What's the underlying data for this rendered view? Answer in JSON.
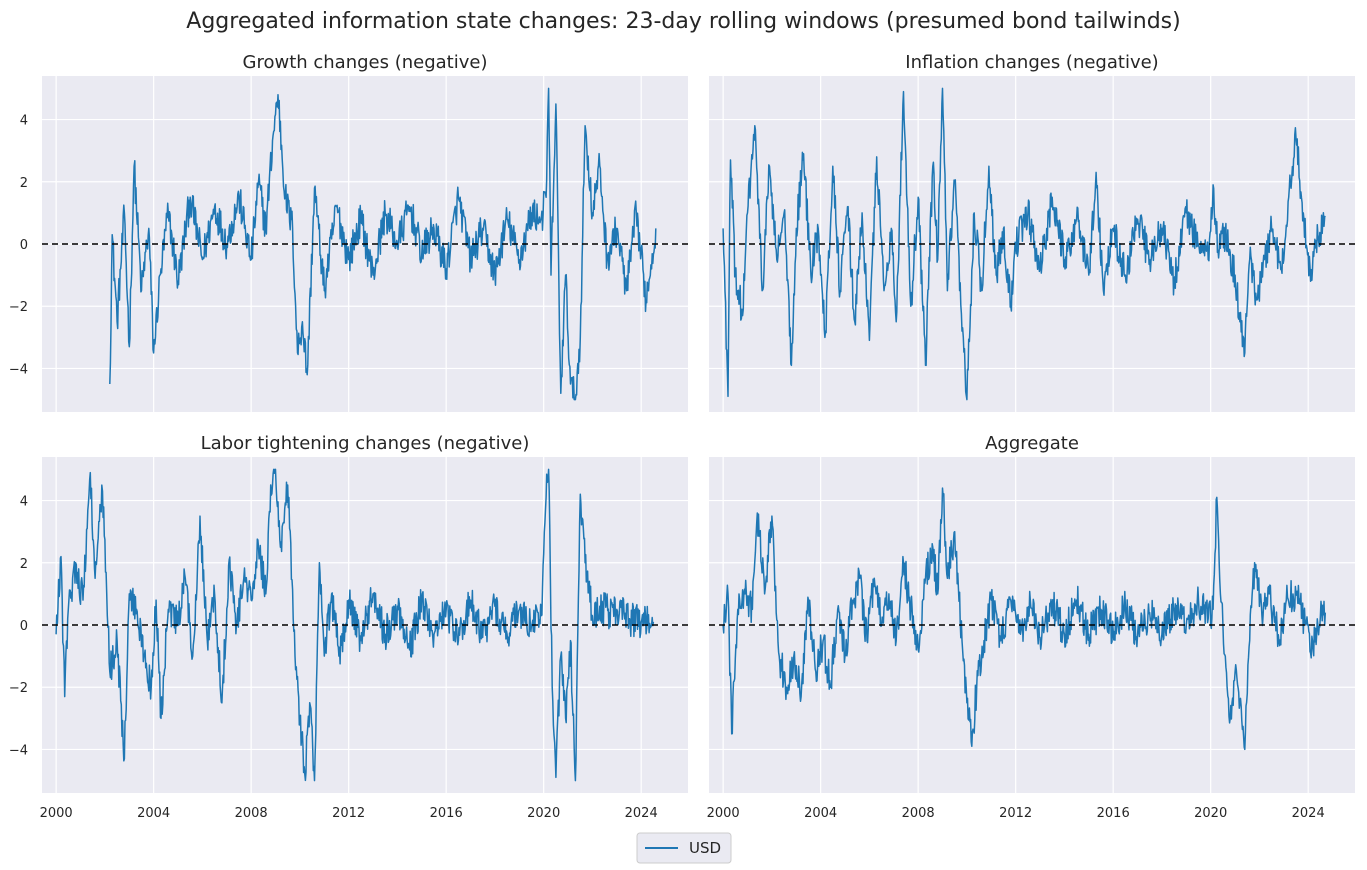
{
  "figure": {
    "title": "Aggregated information state changes: 23-day rolling windows (presumed bond tailwinds)"
  },
  "legend": {
    "entries": [
      {
        "label": "USD",
        "color": "#1f77b4"
      }
    ],
    "placement": "bottom-center"
  },
  "colors": {
    "series": "#1f77b4",
    "panel_bg": "#eaeaf2",
    "grid": "#ffffff",
    "zero_line": "#000000"
  },
  "chart_data": [
    {
      "type": "line",
      "title": "Growth changes (negative)",
      "xlim": [
        1999.42,
        2025.92
      ],
      "ylim": [
        -5.4,
        5.4
      ],
      "x_ticks": [
        2000,
        2004,
        2008,
        2012,
        2016,
        2020,
        2024
      ],
      "x_tick_labels": [
        "2000",
        "2004",
        "2008",
        "2012",
        "2016",
        "2020",
        "2024"
      ],
      "y_ticks": [
        -4,
        -2,
        0,
        2,
        4
      ],
      "y_tick_labels": [
        "−4",
        "−2",
        "0",
        "2",
        "4"
      ],
      "series": [
        {
          "name": "USD",
          "x": [
            2002.2,
            2002.3,
            2002.5,
            2002.8,
            2003.0,
            2003.2,
            2003.5,
            2003.8,
            2004.0,
            2004.3,
            2004.6,
            2005.0,
            2005.5,
            2006.0,
            2006.5,
            2007.0,
            2007.5,
            2008.0,
            2008.3,
            2008.6,
            2008.9,
            2009.1,
            2009.4,
            2009.7,
            2009.9,
            2010.1,
            2010.3,
            2010.6,
            2011.0,
            2011.5,
            2012.0,
            2012.5,
            2013.0,
            2013.5,
            2014.0,
            2014.5,
            2015.0,
            2015.5,
            2016.0,
            2016.5,
            2017.0,
            2017.5,
            2018.0,
            2018.5,
            2019.0,
            2019.5,
            2019.9,
            2020.1,
            2020.2,
            2020.3,
            2020.5,
            2020.7,
            2020.9,
            2021.1,
            2021.3,
            2021.5,
            2021.7,
            2022.0,
            2022.3,
            2022.6,
            2023.0,
            2023.4,
            2023.8,
            2024.2,
            2024.6
          ],
          "y": [
            -4.5,
            0.3,
            -2.5,
            1.0,
            -3.3,
            2.5,
            -1.5,
            0.5,
            -3.5,
            -0.8,
            1.0,
            -1.2,
            1.5,
            -0.5,
            1.2,
            0.0,
            1.5,
            -0.5,
            2.0,
            0.5,
            3.5,
            4.8,
            1.5,
            0.5,
            -3.5,
            -2.5,
            -4.2,
            1.8,
            -1.5,
            1.2,
            -0.5,
            0.8,
            -1.0,
            1.0,
            0.0,
            1.2,
            -0.3,
            0.5,
            -0.8,
            1.5,
            -0.5,
            0.5,
            -1.0,
            0.8,
            -0.5,
            1.0,
            0.8,
            1.5,
            5.0,
            -1.0,
            4.5,
            -4.8,
            -1.0,
            -4.5,
            -5.0,
            -3.0,
            3.8,
            1.0,
            2.5,
            -0.5,
            0.5,
            -1.5,
            1.0,
            -1.8,
            0.5
          ]
        }
      ]
    },
    {
      "type": "line",
      "title": "Inflation changes (negative)",
      "xlim": [
        1999.42,
        2025.92
      ],
      "ylim": [
        -5.4,
        5.4
      ],
      "x_ticks": [
        2000,
        2004,
        2008,
        2012,
        2016,
        2020,
        2024
      ],
      "x_tick_labels": [
        "2000",
        "2004",
        "2008",
        "2012",
        "2016",
        "2020",
        "2024"
      ],
      "y_ticks": [
        -4,
        -2,
        0,
        2,
        4
      ],
      "y_tick_labels": [
        "−4",
        "−2",
        "0",
        "2",
        "4"
      ],
      "series": [
        {
          "name": "USD",
          "x": [
            2000.0,
            2000.2,
            2000.3,
            2000.5,
            2000.8,
            2001.0,
            2001.3,
            2001.6,
            2001.9,
            2002.2,
            2002.5,
            2002.8,
            2003.0,
            2003.3,
            2003.6,
            2003.9,
            2004.2,
            2004.5,
            2004.8,
            2005.1,
            2005.4,
            2005.7,
            2006.0,
            2006.3,
            2006.6,
            2006.9,
            2007.1,
            2007.4,
            2007.7,
            2008.0,
            2008.3,
            2008.6,
            2008.8,
            2009.0,
            2009.2,
            2009.5,
            2009.8,
            2010.0,
            2010.3,
            2010.6,
            2010.9,
            2011.2,
            2011.5,
            2011.8,
            2012.0,
            2012.5,
            2013.0,
            2013.5,
            2014.0,
            2014.5,
            2015.0,
            2015.3,
            2015.6,
            2016.0,
            2016.5,
            2017.0,
            2017.5,
            2018.0,
            2018.5,
            2019.0,
            2019.5,
            2019.9,
            2020.1,
            2020.3,
            2020.6,
            2021.0,
            2021.2,
            2021.4,
            2021.6,
            2021.9,
            2022.2,
            2022.5,
            2022.9,
            2023.2,
            2023.5,
            2023.8,
            2024.1,
            2024.4,
            2024.7
          ],
          "y": [
            0.5,
            -4.9,
            2.7,
            -1.0,
            -2.3,
            1.0,
            3.8,
            -1.5,
            2.5,
            -0.5,
            1.0,
            -3.9,
            0.5,
            2.9,
            -1.0,
            0.5,
            -2.8,
            2.5,
            -1.5,
            1.2,
            -2.5,
            1.0,
            -3.1,
            2.8,
            -1.5,
            0.5,
            -2.5,
            4.9,
            -2.0,
            1.5,
            -3.9,
            2.5,
            -0.5,
            5.0,
            -1.5,
            2.0,
            -2.8,
            -5.0,
            1.0,
            -1.5,
            2.5,
            -1.0,
            0.5,
            -2.0,
            0.0,
            1.0,
            -0.8,
            1.5,
            -0.5,
            0.8,
            -1.0,
            2.3,
            -1.5,
            0.5,
            -1.0,
            0.8,
            -0.5,
            0.5,
            -1.2,
            1.0,
            0.0,
            -0.5,
            1.9,
            -0.2,
            0.3,
            -1.0,
            -2.5,
            -3.5,
            -0.5,
            -1.8,
            -0.5,
            0.5,
            -0.8,
            1.5,
            3.4,
            1.0,
            -1.2,
            0.3,
            0.9
          ]
        }
      ]
    },
    {
      "type": "line",
      "title": "Labor tightening changes (negative)",
      "xlim": [
        1999.42,
        2025.92
      ],
      "ylim": [
        -5.4,
        5.4
      ],
      "x_ticks": [
        2000,
        2004,
        2008,
        2012,
        2016,
        2020,
        2024
      ],
      "x_tick_labels": [
        "2000",
        "2004",
        "2008",
        "2012",
        "2016",
        "2020",
        "2024"
      ],
      "y_ticks": [
        -4,
        -2,
        0,
        2,
        4
      ],
      "y_tick_labels": [
        "−4",
        "−2",
        "0",
        "2",
        "4"
      ],
      "series": [
        {
          "name": "USD",
          "x": [
            2000.0,
            2000.2,
            2000.35,
            2000.5,
            2000.8,
            2001.1,
            2001.4,
            2001.6,
            2001.9,
            2002.2,
            2002.5,
            2002.8,
            2003.0,
            2003.3,
            2003.6,
            2003.9,
            2004.1,
            2004.3,
            2004.6,
            2005.0,
            2005.3,
            2005.6,
            2005.9,
            2006.2,
            2006.5,
            2006.8,
            2007.1,
            2007.4,
            2007.7,
            2008.0,
            2008.3,
            2008.6,
            2008.8,
            2009.0,
            2009.2,
            2009.5,
            2009.8,
            2010.0,
            2010.2,
            2010.4,
            2010.6,
            2010.8,
            2011.0,
            2011.3,
            2011.6,
            2012.0,
            2012.5,
            2013.0,
            2013.5,
            2014.0,
            2014.5,
            2015.0,
            2015.5,
            2016.0,
            2016.5,
            2017.0,
            2017.5,
            2018.0,
            2018.5,
            2019.0,
            2019.5,
            2019.9,
            2020.1,
            2020.2,
            2020.35,
            2020.5,
            2020.7,
            2020.9,
            2021.1,
            2021.3,
            2021.5,
            2021.7,
            2022.0,
            2022.3,
            2022.7,
            2023.0,
            2023.5,
            2024.0,
            2024.5
          ],
          "y": [
            -0.3,
            2.2,
            -2.3,
            0.5,
            2.0,
            0.8,
            4.9,
            1.5,
            4.3,
            -1.5,
            -0.5,
            -4.3,
            1.0,
            0.5,
            -1.0,
            -2.0,
            0.8,
            -3.0,
            0.5,
            0.0,
            1.5,
            -1.0,
            3.5,
            -0.5,
            1.0,
            -2.5,
            2.1,
            0.0,
            1.5,
            0.8,
            2.5,
            1.0,
            4.5,
            5.0,
            2.5,
            4.5,
            -1.0,
            -3.0,
            -4.8,
            -2.5,
            -5.0,
            2.0,
            -1.0,
            1.0,
            -1.0,
            0.8,
            -0.5,
            1.0,
            -0.3,
            0.6,
            -0.8,
            0.8,
            -0.3,
            0.5,
            -0.5,
            0.8,
            -0.4,
            0.6,
            -0.3,
            0.5,
            0.0,
            0.3,
            4.1,
            5.0,
            -2.0,
            -4.9,
            -1.0,
            -3.0,
            -0.5,
            -5.0,
            4.2,
            2.0,
            0.3,
            0.6,
            0.4,
            0.5,
            0.2,
            0.1,
            0.1
          ]
        }
      ]
    },
    {
      "type": "line",
      "title": "Aggregate",
      "xlim": [
        1999.42,
        2025.92
      ],
      "ylim": [
        -5.4,
        5.4
      ],
      "x_ticks": [
        2000,
        2004,
        2008,
        2012,
        2016,
        2020,
        2024
      ],
      "x_tick_labels": [
        "2000",
        "2004",
        "2008",
        "2012",
        "2016",
        "2020",
        "2024"
      ],
      "y_ticks": [
        -4,
        -2,
        0,
        2,
        4
      ],
      "y_tick_labels": [
        "−4",
        "−2",
        "0",
        "2",
        "4"
      ],
      "series": [
        {
          "name": "USD",
          "x": [
            2000.0,
            2000.2,
            2000.35,
            2000.6,
            2000.9,
            2001.2,
            2001.4,
            2001.7,
            2002.0,
            2002.3,
            2002.6,
            2002.9,
            2003.2,
            2003.5,
            2003.8,
            2004.1,
            2004.4,
            2004.7,
            2005.0,
            2005.3,
            2005.6,
            2005.9,
            2006.2,
            2006.5,
            2006.8,
            2007.1,
            2007.4,
            2007.7,
            2008.0,
            2008.3,
            2008.6,
            2008.8,
            2009.0,
            2009.2,
            2009.5,
            2009.8,
            2010.0,
            2010.2,
            2010.4,
            2010.7,
            2011.0,
            2011.4,
            2011.8,
            2012.2,
            2012.6,
            2013.0,
            2013.5,
            2014.0,
            2014.5,
            2015.0,
            2015.5,
            2016.0,
            2016.5,
            2017.0,
            2017.5,
            2018.0,
            2018.5,
            2019.0,
            2019.5,
            2019.9,
            2020.1,
            2020.25,
            2020.4,
            2020.6,
            2020.8,
            2021.0,
            2021.2,
            2021.4,
            2021.6,
            2021.8,
            2022.1,
            2022.4,
            2022.8,
            2023.1,
            2023.5,
            2023.9,
            2024.2,
            2024.5,
            2024.7
          ],
          "y": [
            0.0,
            1.0,
            -3.5,
            0.5,
            1.0,
            0.5,
            3.6,
            1.0,
            3.5,
            -1.0,
            -2.0,
            -1.0,
            -2.3,
            0.8,
            -1.5,
            -0.5,
            -2.0,
            0.5,
            -1.0,
            0.8,
            1.5,
            -0.5,
            1.5,
            0.0,
            1.0,
            -0.5,
            2.0,
            0.5,
            -0.8,
            1.5,
            2.5,
            1.0,
            4.4,
            1.5,
            3.0,
            -0.5,
            -2.5,
            -3.9,
            -2.0,
            -0.5,
            0.8,
            -0.5,
            0.8,
            -0.3,
            0.8,
            -0.4,
            0.7,
            -0.3,
            0.8,
            -0.3,
            0.5,
            -0.2,
            0.6,
            -0.3,
            0.4,
            -0.3,
            0.5,
            0.0,
            0.8,
            0.2,
            0.5,
            4.1,
            1.0,
            -1.0,
            -3.0,
            -1.5,
            -2.5,
            -4.0,
            -0.5,
            2.0,
            0.3,
            1.0,
            -0.5,
            0.8,
            1.0,
            0.0,
            -0.8,
            0.3,
            0.4
          ]
        }
      ]
    }
  ]
}
